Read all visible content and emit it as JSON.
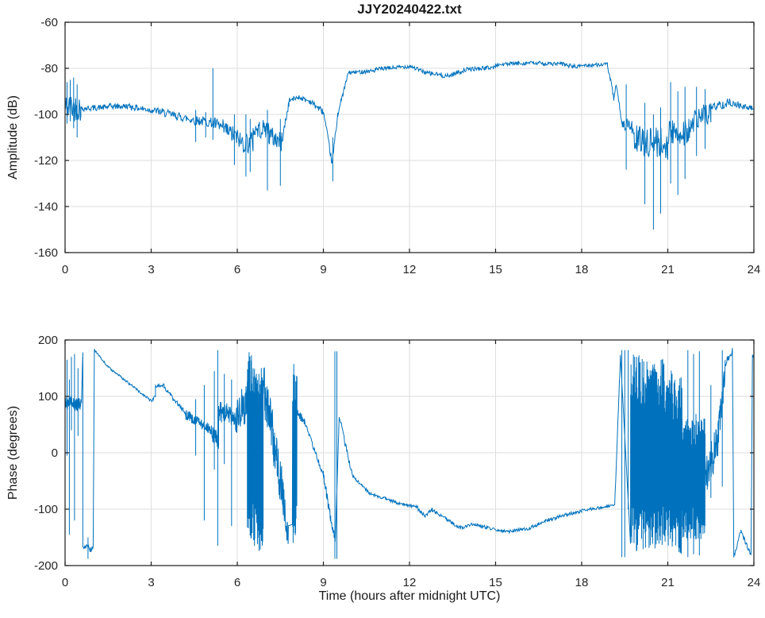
{
  "style": {
    "line_color": "#0072BD",
    "grid_color": "#DEDEDE",
    "axis_color": "#1A1A1A",
    "text_color": "#262626",
    "background": "#FFFFFF"
  },
  "chart_data": [
    {
      "id": "amplitude",
      "type": "line",
      "title": "JJY20240422.txt",
      "ylabel": "Amplitude (dB)",
      "xlim": [
        0,
        24
      ],
      "ylim": [
        -160,
        -60
      ],
      "xticks": [
        0,
        3,
        6,
        9,
        12,
        15,
        18,
        21,
        24
      ],
      "yticks": [
        -160,
        -140,
        -120,
        -100,
        -80,
        -60
      ],
      "grid": true,
      "legend": null,
      "segments": [
        [
          0.0,
          0.55,
          -97,
          -97,
          6
        ],
        [
          0.55,
          1.5,
          -97.5,
          -96.8,
          1.3
        ],
        [
          1.5,
          2.3,
          -96.5,
          -96.5,
          1.3
        ],
        [
          2.3,
          3.2,
          -96.8,
          -98.5,
          1.4
        ],
        [
          3.2,
          4.3,
          -98.5,
          -102,
          1.8
        ],
        [
          4.3,
          5.1,
          -102,
          -103.5,
          2.2
        ],
        [
          5.1,
          5.5,
          -103.5,
          -106,
          3
        ],
        [
          5.5,
          6.1,
          -106,
          -111,
          4
        ],
        [
          6.1,
          6.55,
          -112,
          -112,
          5
        ],
        [
          6.55,
          7.1,
          -107,
          -106,
          4
        ],
        [
          7.1,
          7.55,
          -109,
          -112,
          4.5
        ],
        [
          7.55,
          7.8,
          -112,
          -95,
          2
        ],
        [
          7.8,
          8.15,
          -94,
          -92.5,
          1.1
        ],
        [
          8.15,
          8.55,
          -92.5,
          -94.5,
          1.1
        ],
        [
          8.55,
          9.0,
          -94.5,
          -99,
          1.4
        ],
        [
          9.0,
          9.3,
          -99,
          -121,
          1.6
        ],
        [
          9.3,
          9.5,
          -122,
          -100,
          1.6
        ],
        [
          9.5,
          9.85,
          -100,
          -83,
          1.2
        ],
        [
          9.85,
          10.8,
          -82,
          -81,
          0.9
        ],
        [
          10.8,
          12.1,
          -80.5,
          -79,
          0.9
        ],
        [
          12.1,
          12.6,
          -79.5,
          -82,
          0.9
        ],
        [
          12.6,
          13.4,
          -82,
          -83.5,
          1.1
        ],
        [
          13.4,
          14.0,
          -83,
          -80.5,
          1.0
        ],
        [
          14.0,
          15.0,
          -80.5,
          -79.5,
          0.9
        ],
        [
          15.0,
          16.3,
          -78.5,
          -77.5,
          0.9
        ],
        [
          16.3,
          17.4,
          -77.8,
          -78.2,
          0.9
        ],
        [
          17.4,
          17.9,
          -78.5,
          -79.5,
          0.9
        ],
        [
          17.9,
          18.9,
          -78.8,
          -78.3,
          0.8
        ],
        [
          18.9,
          19.12,
          -78.5,
          -93,
          1.2
        ],
        [
          19.12,
          19.2,
          -93,
          -88,
          1.2
        ],
        [
          19.2,
          19.4,
          -88,
          -103,
          1.6
        ],
        [
          19.4,
          19.75,
          -104,
          -105,
          2.6
        ],
        [
          19.75,
          21.0,
          -111,
          -113,
          7
        ],
        [
          21.0,
          21.9,
          -109,
          -106,
          7
        ],
        [
          21.9,
          22.5,
          -103,
          -99,
          5
        ],
        [
          22.5,
          23.1,
          -97,
          -95,
          2
        ],
        [
          23.1,
          23.5,
          -94.5,
          -96,
          1.6
        ],
        [
          23.5,
          24.0,
          -96.5,
          -97.5,
          1.3
        ]
      ],
      "spikes": [
        [
          0.07,
          -86,
          -104
        ],
        [
          0.18,
          -85,
          -103
        ],
        [
          0.3,
          -84,
          -106
        ],
        [
          0.42,
          -87,
          -110
        ],
        [
          4.55,
          -98,
          -112
        ],
        [
          4.9,
          -99,
          -110
        ],
        [
          5.15,
          -80,
          -111
        ],
        [
          5.9,
          -100,
          -122
        ],
        [
          6.3,
          -100,
          -127
        ],
        [
          6.45,
          -102,
          -125
        ],
        [
          7.05,
          -98,
          -133
        ],
        [
          7.5,
          -102,
          -131
        ],
        [
          9.33,
          -110,
          -129
        ],
        [
          19.55,
          -87,
          -124
        ],
        [
          20.2,
          -95,
          -139
        ],
        [
          20.5,
          -100,
          -150
        ],
        [
          20.75,
          -97,
          -143
        ],
        [
          21.1,
          -86,
          -130
        ],
        [
          21.35,
          -90,
          -135
        ],
        [
          21.6,
          -88,
          -128
        ],
        [
          22.0,
          -88,
          -118
        ],
        [
          22.3,
          -89,
          -115
        ]
      ]
    },
    {
      "id": "phase",
      "type": "line",
      "title": "",
      "xlabel": "Time (hours after midnight UTC)",
      "ylabel": "Phase (degrees)",
      "xlim": [
        0,
        24
      ],
      "ylim": [
        -200,
        200
      ],
      "xticks": [
        0,
        3,
        6,
        9,
        12,
        15,
        18,
        21,
        24
      ],
      "yticks": [
        -200,
        -100,
        0,
        100,
        200
      ],
      "grid": true,
      "legend": null,
      "segments": [
        [
          0.0,
          0.55,
          90,
          85,
          13
        ],
        [
          0.57,
          0.62,
          85,
          182,
          4
        ],
        [
          0.62,
          0.98,
          -165,
          -172,
          6
        ],
        [
          1.02,
          1.5,
          182,
          152,
          2
        ],
        [
          1.5,
          2.1,
          152,
          128,
          2
        ],
        [
          2.1,
          3.0,
          128,
          92,
          2.2
        ],
        [
          3.0,
          3.15,
          92,
          100,
          3
        ],
        [
          3.15,
          3.45,
          118,
          121,
          4
        ],
        [
          3.45,
          4.2,
          115,
          70,
          4.5
        ],
        [
          4.2,
          5.1,
          68,
          40,
          9
        ],
        [
          5.1,
          5.35,
          35,
          22,
          16
        ],
        [
          5.35,
          5.95,
          75,
          60,
          20
        ],
        [
          5.95,
          6.35,
          60,
          90,
          38
        ],
        [
          6.35,
          6.6,
          10,
          0,
          172
        ],
        [
          6.6,
          6.9,
          -5,
          -15,
          165
        ],
        [
          6.9,
          7.3,
          125,
          15,
          48
        ],
        [
          7.3,
          7.6,
          10,
          -80,
          40
        ],
        [
          7.6,
          7.78,
          -80,
          -150,
          28
        ],
        [
          7.92,
          8.08,
          0,
          0,
          176
        ],
        [
          8.08,
          8.35,
          72,
          55,
          8
        ],
        [
          8.35,
          9.0,
          55,
          -40,
          5
        ],
        [
          9.0,
          9.3,
          -40,
          -130,
          8
        ],
        [
          9.3,
          9.42,
          -130,
          -158,
          10
        ],
        [
          9.55,
          10.0,
          65,
          -40,
          6
        ],
        [
          10.0,
          10.6,
          -40,
          -72,
          3
        ],
        [
          10.6,
          11.5,
          -72,
          -87,
          2.6
        ],
        [
          11.5,
          12.3,
          -88,
          -97,
          2.6
        ],
        [
          12.3,
          12.55,
          -100,
          -112,
          3
        ],
        [
          12.55,
          12.8,
          -112,
          -100,
          3
        ],
        [
          12.8,
          13.3,
          -102,
          -118,
          3
        ],
        [
          13.3,
          13.75,
          -118,
          -133,
          3
        ],
        [
          13.75,
          14.3,
          -133,
          -126,
          3
        ],
        [
          14.3,
          15.1,
          -128,
          -137,
          3
        ],
        [
          15.1,
          15.5,
          -137,
          -141,
          2.6
        ],
        [
          15.5,
          16.2,
          -139,
          -134,
          2.6
        ],
        [
          16.2,
          16.8,
          -133,
          -120,
          3
        ],
        [
          16.8,
          17.3,
          -120,
          -112,
          3
        ],
        [
          17.3,
          18.0,
          -112,
          -103,
          3
        ],
        [
          18.0,
          18.7,
          -102,
          -97,
          2.6
        ],
        [
          18.7,
          19.15,
          -97,
          -93,
          2.6
        ],
        [
          19.15,
          19.35,
          -93,
          170,
          5
        ],
        [
          19.7,
          20.9,
          0,
          0,
          175
        ],
        [
          20.9,
          21.5,
          -10,
          -20,
          160
        ],
        [
          21.5,
          22.3,
          -48,
          -40,
          112
        ],
        [
          22.3,
          22.75,
          -45,
          20,
          36
        ],
        [
          22.75,
          23.0,
          30,
          140,
          26
        ],
        [
          23.0,
          23.25,
          158,
          179,
          7
        ],
        [
          23.3,
          23.55,
          -185,
          -138,
          4
        ],
        [
          23.55,
          23.9,
          -140,
          -182,
          4
        ],
        [
          23.95,
          24.0,
          176,
          168,
          5
        ]
      ],
      "spikes": [
        [
          0.07,
          165,
          -5
        ],
        [
          0.15,
          130,
          -145
        ],
        [
          0.22,
          170,
          40
        ],
        [
          0.33,
          175,
          -120
        ],
        [
          0.45,
          150,
          30
        ],
        [
          0.8,
          -150,
          -188
        ],
        [
          4.55,
          95,
          -5
        ],
        [
          4.85,
          120,
          -120
        ],
        [
          5.2,
          145,
          -30
        ],
        [
          5.32,
          182,
          -165
        ],
        [
          5.55,
          140,
          -20
        ],
        [
          5.8,
          130,
          -130
        ],
        [
          9.4,
          180,
          -188
        ],
        [
          9.47,
          180,
          -188
        ],
        [
          19.4,
          182,
          -185
        ],
        [
          19.5,
          182,
          -185
        ],
        [
          19.62,
          182,
          -100
        ],
        [
          21.7,
          182,
          -185
        ],
        [
          21.9,
          175,
          -180
        ],
        [
          22.1,
          180,
          -182
        ],
        [
          22.5,
          120,
          -80
        ],
        [
          22.9,
          182,
          -60
        ]
      ]
    }
  ]
}
